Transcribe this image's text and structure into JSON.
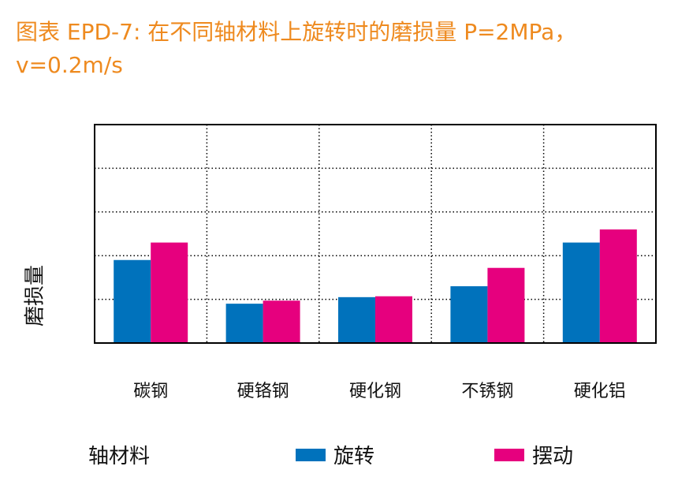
{
  "title": "图表 EPD-7: 在不同轴材料上旋转时的磨损量 P=2MPa，v=0.2m/s",
  "chart_data": {
    "type": "bar",
    "categories": [
      "碳钢",
      "硬铬钢",
      "硬化钢",
      "不锈钢",
      "硬化铝"
    ],
    "series": [
      {
        "name": "旋转",
        "color": "#0072bc",
        "values": [
          1.9,
          0.9,
          1.05,
          1.3,
          2.3
        ]
      },
      {
        "name": "摆动",
        "color": "#e6007e",
        "values": [
          2.3,
          0.97,
          1.07,
          1.72,
          2.6
        ]
      }
    ],
    "xlabel": "轴材料",
    "ylabel": "磨损量",
    "ylim": [
      0,
      5
    ],
    "grid": true,
    "legend_position": "bottom"
  }
}
